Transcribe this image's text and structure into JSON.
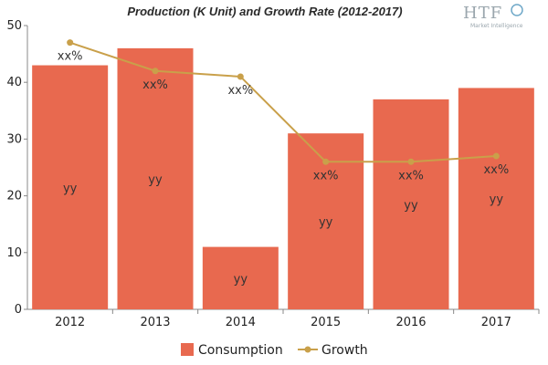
{
  "chart_data": {
    "type": "bar",
    "title": "Production (K Unit) and Growth Rate (2012-2017)",
    "categories": [
      "2012",
      "2013",
      "2014",
      "2015",
      "2016",
      "2017"
    ],
    "ylim": [
      0,
      50
    ],
    "yticks": [
      "0",
      "10",
      "20",
      "30",
      "40",
      "50"
    ],
    "xlabel": "",
    "ylabel": "",
    "grid": false,
    "legend_position": "bottom",
    "series": [
      {
        "name": "Consumption",
        "kind": "bar",
        "color": "#e8694f",
        "values": [
          43,
          46,
          11,
          31,
          37,
          39
        ],
        "labels": [
          "yy",
          "yy",
          "yy",
          "yy",
          "yy",
          "yy"
        ]
      },
      {
        "name": "Growth",
        "kind": "line",
        "color": "#c9a04a",
        "values": [
          47,
          42,
          41,
          26,
          26,
          27
        ],
        "labels": [
          "xx%",
          "xx%",
          "xx%",
          "xx%",
          "xx%",
          "xx%"
        ]
      }
    ]
  },
  "logo": {
    "text": "HTF",
    "subtext": "Market Intelligence"
  }
}
